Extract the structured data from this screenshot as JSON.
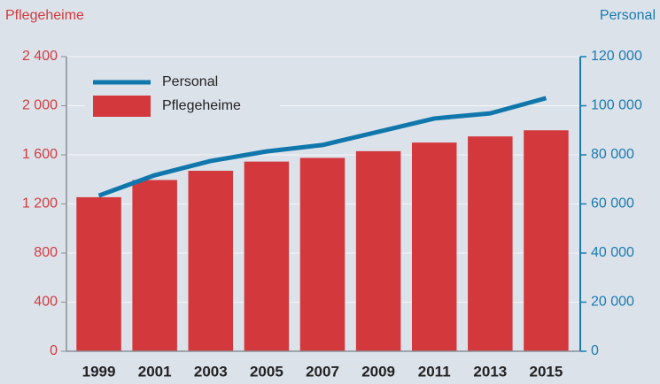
{
  "chart_data": {
    "type": "bar",
    "y_label": "Pflegeheime",
    "y2_label": "Personal",
    "categories": [
      "1999",
      "2001",
      "2003",
      "2005",
      "2007",
      "2009",
      "2011",
      "2013",
      "2015"
    ],
    "series": [
      {
        "name": "Personal",
        "type": "line",
        "axis": "y2",
        "color": "#0f77ab",
        "values": [
          63400,
          71700,
          77500,
          81400,
          84000,
          89400,
          94800,
          96900,
          103100
        ]
      },
      {
        "name": "Pflegeheime",
        "type": "bar",
        "color": "#d2383c",
        "values": [
          1255,
          1395,
          1470,
          1545,
          1575,
          1630,
          1700,
          1750,
          1800
        ]
      }
    ],
    "ylim": [
      0,
      2400
    ],
    "yticks": [
      0,
      {
        "value": 400,
        "label": "400"
      },
      {
        "value": 800,
        "label": "800"
      },
      {
        "value": 1200,
        "label": "1 200"
      },
      {
        "value": 1600,
        "label": "1 600"
      },
      {
        "value": 2000,
        "label": "2 000"
      },
      {
        "value": 2400,
        "label": "2 400"
      }
    ],
    "y2lim": [
      0,
      120000
    ],
    "y2ticks": [
      0,
      {
        "value": 20000,
        "label": "20 000"
      },
      {
        "value": 40000,
        "label": "40 000"
      },
      {
        "value": 60000,
        "label": "60 000"
      },
      {
        "value": 80000,
        "label": "80 000"
      },
      {
        "value": 100000,
        "label": "100 000"
      },
      {
        "value": 120000,
        "label": "120 000"
      }
    ],
    "y_color": "#d03c3f",
    "y2_color": "#1a7bb0",
    "grid": true,
    "legend": "upper left"
  }
}
